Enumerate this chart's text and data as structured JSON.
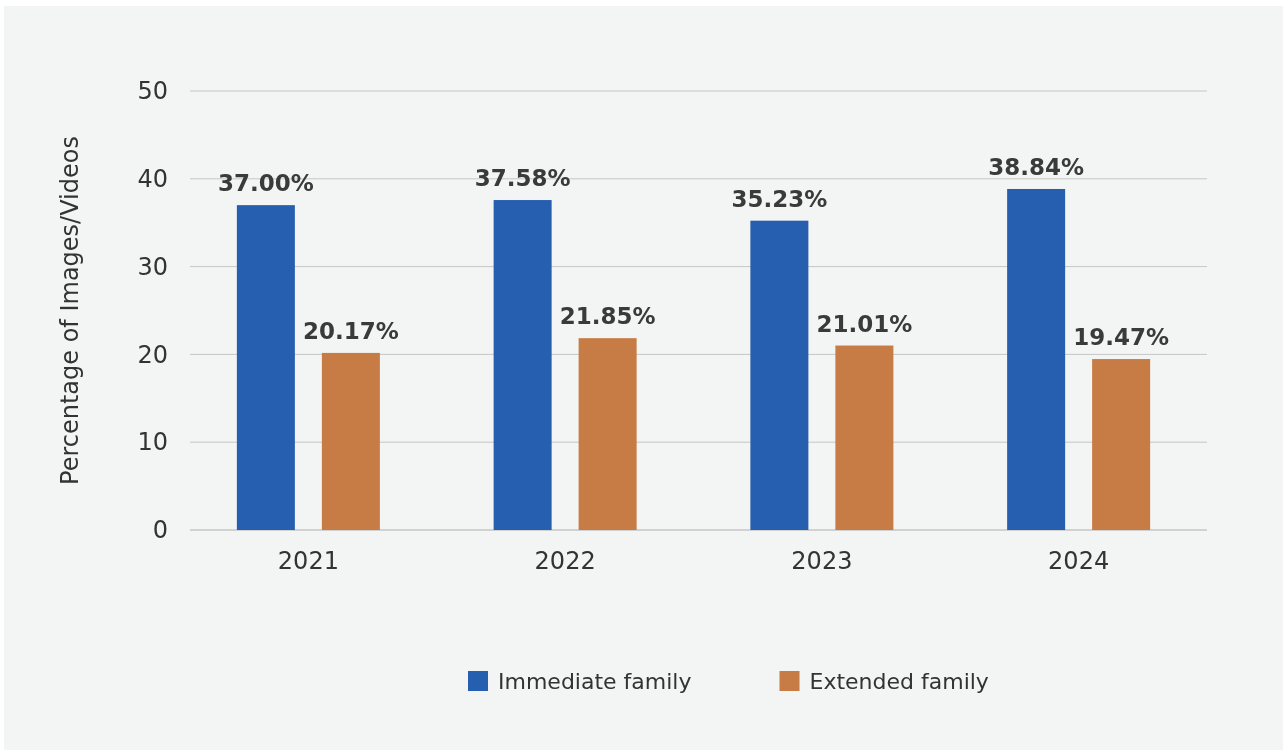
{
  "chart_data": {
    "type": "bar",
    "ylabel": "Percentage of Images/Videos",
    "categories": [
      "2021",
      "2022",
      "2023",
      "2024"
    ],
    "series": [
      {
        "name": "Immediate family",
        "color": "#265fb0",
        "values": [
          37.0,
          37.58,
          35.23,
          38.84
        ],
        "value_labels": [
          "37.00%",
          "37.58%",
          "35.23%",
          "38.84%"
        ]
      },
      {
        "name": "Extended family",
        "color": "#c77b45",
        "values": [
          20.17,
          21.85,
          21.01,
          19.47
        ],
        "value_labels": [
          "20.17%",
          "21.85%",
          "21.01%",
          "19.47%"
        ]
      }
    ],
    "ylim": [
      0,
      50
    ],
    "yticks": [
      0,
      10,
      20,
      30,
      40,
      50
    ],
    "grid": "y",
    "legend": "bottom"
  }
}
